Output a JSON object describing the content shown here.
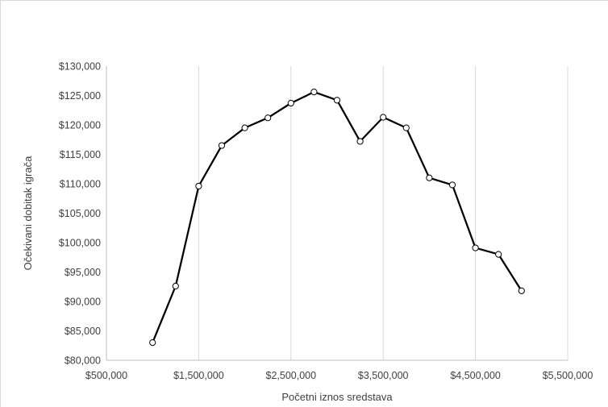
{
  "chart_data": {
    "type": "line",
    "title": "",
    "xlabel": "Početni iznos sredstava",
    "ylabel": "Očekivani dobitak igrača",
    "xlim": [
      500000,
      5500000
    ],
    "ylim": [
      80000,
      130000
    ],
    "x_ticks": [
      500000,
      1500000,
      2500000,
      3500000,
      4500000,
      5500000
    ],
    "x_tick_labels": [
      "$500,000",
      "$1,500,000",
      "$2,500,000",
      "$3,500,000",
      "$4,500,000",
      "$5,500,000"
    ],
    "y_ticks": [
      80000,
      85000,
      90000,
      95000,
      100000,
      105000,
      110000,
      115000,
      120000,
      125000,
      130000
    ],
    "y_tick_labels": [
      "$80,000",
      "$85,000",
      "$90,000",
      "$95,000",
      "$100,000",
      "$105,000",
      "$110,000",
      "$115,000",
      "$120,000",
      "$125,000",
      "$130,000"
    ],
    "grid": {
      "vertical": true,
      "horizontal": false
    },
    "legend": "none",
    "series": [
      {
        "color": "#000000",
        "marker": "circle-hollow",
        "x": [
          1000000,
          1250000,
          1500000,
          1750000,
          2000000,
          2250000,
          2500000,
          2750000,
          3000000,
          3250000,
          3500000,
          3750000,
          4000000,
          4250000,
          4500000,
          4750000,
          5000000
        ],
        "y": [
          83000,
          92600,
          109600,
          116500,
          119500,
          121200,
          123700,
          125600,
          124200,
          117200,
          121300,
          119500,
          111000,
          109800,
          99100,
          98000,
          91800
        ]
      }
    ]
  }
}
